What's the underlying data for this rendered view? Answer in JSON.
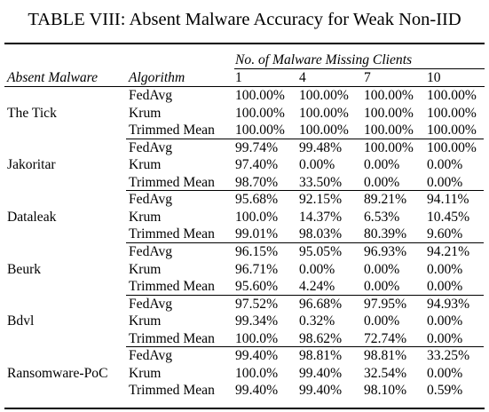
{
  "caption": "TABLE VIII: Absent Malware Accuracy for Weak Non-IID",
  "header": {
    "group_label": "No. of Malware Missing Clients",
    "col_absent": "Absent Malware",
    "col_algorithm": "Algorithm",
    "clients": [
      "1",
      "4",
      "7",
      "10"
    ]
  },
  "groups": [
    {
      "malware": "The Tick",
      "rows": [
        {
          "algorithm": "FedAvg",
          "values": [
            "100.00%",
            "100.00%",
            "100.00%",
            "100.00%"
          ]
        },
        {
          "algorithm": "Krum",
          "values": [
            "100.00%",
            "100.00%",
            "100.00%",
            "100.00%"
          ]
        },
        {
          "algorithm": "Trimmed Mean",
          "values": [
            "100.00%",
            "100.00%",
            "100.00%",
            "100.00%"
          ]
        }
      ]
    },
    {
      "malware": "Jakoritar",
      "rows": [
        {
          "algorithm": "FedAvg",
          "values": [
            "99.74%",
            "99.48%",
            "100.00%",
            "100.00%"
          ]
        },
        {
          "algorithm": "Krum",
          "values": [
            "97.40%",
            "0.00%",
            "0.00%",
            "0.00%"
          ]
        },
        {
          "algorithm": "Trimmed Mean",
          "values": [
            "98.70%",
            "33.50%",
            "0.00%",
            "0.00%"
          ]
        }
      ]
    },
    {
      "malware": "Dataleak",
      "rows": [
        {
          "algorithm": "FedAvg",
          "values": [
            "95.68%",
            "92.15%",
            "89.21%",
            "94.11%"
          ]
        },
        {
          "algorithm": "Krum",
          "values": [
            "100.0%",
            "14.37%",
            "6.53%",
            "10.45%"
          ]
        },
        {
          "algorithm": "Trimmed Mean",
          "values": [
            "99.01%",
            "98.03%",
            "80.39%",
            "9.60%"
          ]
        }
      ]
    },
    {
      "malware": "Beurk",
      "rows": [
        {
          "algorithm": "FedAvg",
          "values": [
            "96.15%",
            "95.05%",
            "96.93%",
            "94.21%"
          ]
        },
        {
          "algorithm": "Krum",
          "values": [
            "96.71%",
            "0.00%",
            "0.00%",
            "0.00%"
          ]
        },
        {
          "algorithm": "Trimmed Mean",
          "values": [
            "95.60%",
            "4.24%",
            "0.00%",
            "0.00%"
          ]
        }
      ]
    },
    {
      "malware": "Bdvl",
      "rows": [
        {
          "algorithm": "FedAvg",
          "values": [
            "97.52%",
            "96.68%",
            "97.95%",
            "94.93%"
          ]
        },
        {
          "algorithm": "Krum",
          "values": [
            "99.34%",
            "0.32%",
            "0.00%",
            "0.00%"
          ]
        },
        {
          "algorithm": "Trimmed Mean",
          "values": [
            "100.0%",
            "98.62%",
            "72.74%",
            "0.00%"
          ]
        }
      ]
    },
    {
      "malware": "Ransomware-PoC",
      "rows": [
        {
          "algorithm": "FedAvg",
          "values": [
            "99.40%",
            "98.81%",
            "98.81%",
            "33.25%"
          ]
        },
        {
          "algorithm": "Krum",
          "values": [
            "100.0%",
            "99.40%",
            "32.54%",
            "0.00%"
          ]
        },
        {
          "algorithm": "Trimmed Mean",
          "values": [
            "99.40%",
            "99.40%",
            "98.10%",
            "0.59%"
          ]
        }
      ]
    }
  ]
}
